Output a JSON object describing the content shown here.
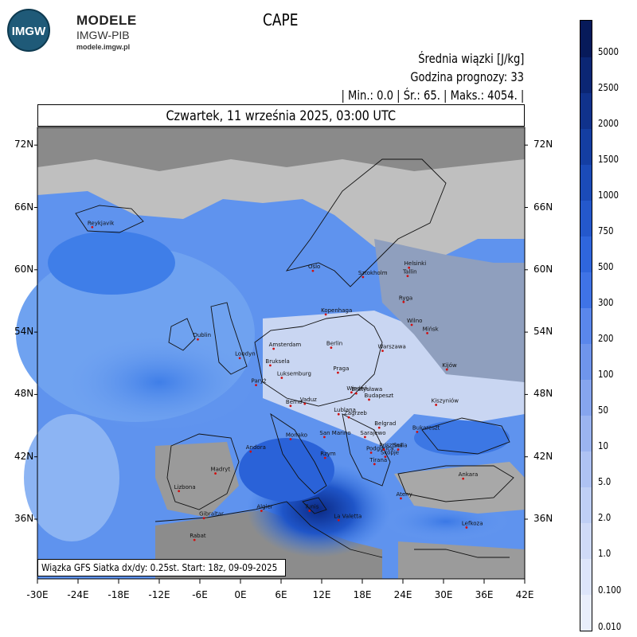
{
  "header": {
    "brand_title": "MODELE",
    "brand_subtitle": "IMGW-PIB",
    "brand_url": "modele.imgw.pl",
    "logo_text": "IMGW",
    "parameter": "CAPE",
    "unit_line": "Średnia wiązki [J/kg]",
    "forecast_hour_line": "Godzina prognozy: 33",
    "stats_line": "| Min.:     0.0 | Śr.:     65. | Maks.:     4054. |",
    "date_line": "Czwartek, 11 września 2025, 03:00 UTC"
  },
  "footer": {
    "text": "Wiązka GFS Siatka dx/dy: 0.25st. Start: 18z, 09-09-2025"
  },
  "map": {
    "lat_labels": [
      "72N",
      "66N",
      "60N",
      "54N",
      "48N",
      "42N",
      "36N"
    ],
    "lon_labels": [
      "-30E",
      "-24E",
      "-18E",
      "-12E",
      "-6E",
      "0E",
      "6E",
      "12E",
      "18E",
      "24E",
      "30E",
      "36E",
      "42E"
    ],
    "cities": [
      {
        "name": "Reykjavik",
        "lon": -21.9,
        "lat": 64.1
      },
      {
        "name": "Oslo",
        "lon": 10.7,
        "lat": 59.9
      },
      {
        "name": "Sztokholm",
        "lon": 18.1,
        "lat": 59.3
      },
      {
        "name": "Helsinki",
        "lon": 24.9,
        "lat": 60.2
      },
      {
        "name": "Tallin",
        "lon": 24.7,
        "lat": 59.4
      },
      {
        "name": "Ryga",
        "lon": 24.1,
        "lat": 56.9
      },
      {
        "name": "Kopenhaga",
        "lon": 12.6,
        "lat": 55.7
      },
      {
        "name": "Wilno",
        "lon": 25.3,
        "lat": 54.7
      },
      {
        "name": "Mińsk",
        "lon": 27.6,
        "lat": 53.9
      },
      {
        "name": "Dublin",
        "lon": -6.3,
        "lat": 53.3
      },
      {
        "name": "Amsterdam",
        "lon": 4.9,
        "lat": 52.4
      },
      {
        "name": "Berlin",
        "lon": 13.4,
        "lat": 52.5
      },
      {
        "name": "Warszawa",
        "lon": 21.0,
        "lat": 52.2
      },
      {
        "name": "Londyn",
        "lon": -0.1,
        "lat": 51.5
      },
      {
        "name": "Bruksela",
        "lon": 4.4,
        "lat": 50.8
      },
      {
        "name": "Kijów",
        "lon": 30.5,
        "lat": 50.4
      },
      {
        "name": "Luksemburg",
        "lon": 6.1,
        "lat": 49.6
      },
      {
        "name": "Praga",
        "lon": 14.4,
        "lat": 50.1
      },
      {
        "name": "Paryż",
        "lon": 2.3,
        "lat": 48.9
      },
      {
        "name": "Wiedeń",
        "lon": 16.4,
        "lat": 48.2
      },
      {
        "name": "Bratysława",
        "lon": 17.1,
        "lat": 48.1
      },
      {
        "name": "Budapeszt",
        "lon": 19.0,
        "lat": 47.5
      },
      {
        "name": "Vaduz",
        "lon": 9.5,
        "lat": 47.1
      },
      {
        "name": "Berno",
        "lon": 7.4,
        "lat": 46.9
      },
      {
        "name": "Kiszyniów",
        "lon": 28.9,
        "lat": 47.0
      },
      {
        "name": "Lublana",
        "lon": 14.5,
        "lat": 46.1
      },
      {
        "name": "Zagrzeb",
        "lon": 16.0,
        "lat": 45.8
      },
      {
        "name": "Belgrad",
        "lon": 20.5,
        "lat": 44.8
      },
      {
        "name": "Bukareszt",
        "lon": 26.1,
        "lat": 44.4
      },
      {
        "name": "Monako",
        "lon": 7.4,
        "lat": 43.7
      },
      {
        "name": "San Marino",
        "lon": 12.4,
        "lat": 43.9
      },
      {
        "name": "Sarajewo",
        "lon": 18.4,
        "lat": 43.9
      },
      {
        "name": "Podgorica",
        "lon": 19.3,
        "lat": 42.4
      },
      {
        "name": "Sofia",
        "lon": 23.3,
        "lat": 42.7
      },
      {
        "name": "Prisztina",
        "lon": 21.2,
        "lat": 42.7
      },
      {
        "name": "Skopje",
        "lon": 21.4,
        "lat": 42.0
      },
      {
        "name": "Andora",
        "lon": 1.5,
        "lat": 42.5
      },
      {
        "name": "Rzym",
        "lon": 12.5,
        "lat": 41.9
      },
      {
        "name": "Tirana",
        "lon": 19.8,
        "lat": 41.3
      },
      {
        "name": "Madryt",
        "lon": -3.7,
        "lat": 40.4
      },
      {
        "name": "Ankara",
        "lon": 32.9,
        "lat": 39.9
      },
      {
        "name": "Lizbona",
        "lon": -9.1,
        "lat": 38.7
      },
      {
        "name": "Ateny",
        "lon": 23.7,
        "lat": 38.0
      },
      {
        "name": "Algier",
        "lon": 3.1,
        "lat": 36.8
      },
      {
        "name": "Tunis",
        "lon": 10.2,
        "lat": 36.8
      },
      {
        "name": "Gibraltar",
        "lon": -5.4,
        "lat": 36.1
      },
      {
        "name": "La Valetta",
        "lon": 14.5,
        "lat": 35.9
      },
      {
        "name": "Lefkoza",
        "lon": 33.4,
        "lat": 35.2
      },
      {
        "name": "Rabat",
        "lon": -6.8,
        "lat": 34.0
      }
    ]
  },
  "legend": {
    "labels": [
      "0.010",
      "0.100",
      "1.0",
      "2.0",
      "5.0",
      "10",
      "50",
      "100",
      "200",
      "300",
      "500",
      "750",
      "1000",
      "1500",
      "2000",
      "2500",
      "5000"
    ],
    "colors": [
      "#e9eefb",
      "#dde5fa",
      "#cfdaf7",
      "#bfcff5",
      "#aec2f3",
      "#9bb4f0",
      "#86a5ee",
      "#6f95ec",
      "#5a87ec",
      "#3f73e6",
      "#2f66dd",
      "#2458cc",
      "#1b4bb8",
      "#143ea2",
      "#10328c",
      "#0b2674",
      "#071a5a"
    ]
  }
}
